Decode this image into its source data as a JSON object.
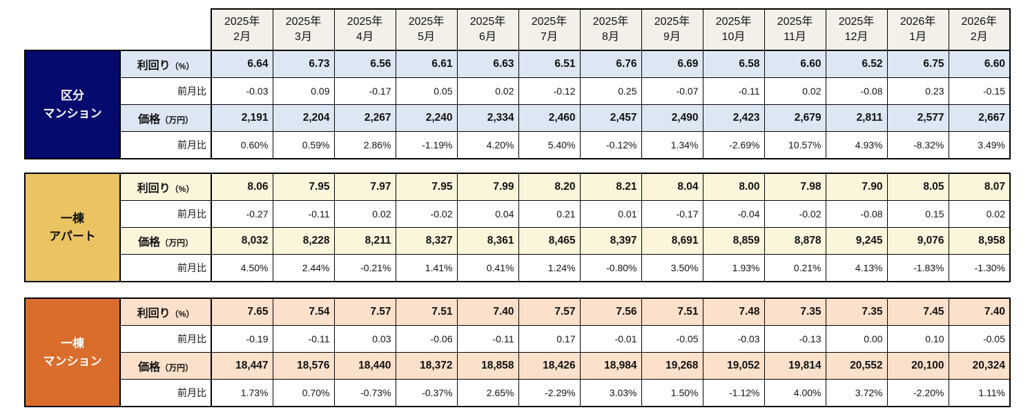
{
  "months": [
    {
      "year": "2025年",
      "month": "2月"
    },
    {
      "year": "2025年",
      "month": "3月"
    },
    {
      "year": "2025年",
      "month": "4月"
    },
    {
      "year": "2025年",
      "month": "5月"
    },
    {
      "year": "2025年",
      "month": "6月"
    },
    {
      "year": "2025年",
      "month": "7月"
    },
    {
      "year": "2025年",
      "month": "8月"
    },
    {
      "year": "2025年",
      "month": "9月"
    },
    {
      "year": "2025年",
      "month": "10月"
    },
    {
      "year": "2025年",
      "month": "11月"
    },
    {
      "year": "2025年",
      "month": "12月"
    },
    {
      "year": "2026年",
      "month": "1月"
    },
    {
      "year": "2026年",
      "month": "2月"
    }
  ],
  "row_labels": {
    "yield": "利回り",
    "yield_unit": "（%）",
    "price": "価格",
    "price_unit": "（万円）",
    "mom": "前月比"
  },
  "colors": {
    "header_bg": "#f3f0ea",
    "border": "#000000",
    "kubun_label_bg": "#050a6e",
    "kubun_row_bg": "#dce7f3",
    "apart_label_bg": "#eac463",
    "apart_row_bg": "#fbf5dc",
    "mansion_label_bg": "#db6d2c",
    "mansion_row_bg": "#fbe0cb"
  },
  "sections": [
    {
      "label_line1": "区分",
      "label_line2": "マンション",
      "label_bg": "#050a6e",
      "label_color": "#ffffff",
      "row_bg": "#dce7f3"
    },
    {
      "label_line1": "一棟",
      "label_line2": "アパート",
      "label_bg": "#eac463",
      "label_color": "#111111",
      "row_bg": "#fbf5dc"
    },
    {
      "label_line1": "一棟",
      "label_line2": "マンション",
      "label_bg": "#db6d2c",
      "label_color": "#ffffff",
      "row_bg": "#fbe0cb"
    }
  ],
  "chart_data": [
    {
      "type": "table",
      "title": "区分マンション",
      "categories": [
        "2025年2月",
        "2025年3月",
        "2025年4月",
        "2025年5月",
        "2025年6月",
        "2025年7月",
        "2025年8月",
        "2025年9月",
        "2025年10月",
        "2025年11月",
        "2025年12月",
        "2026年1月",
        "2026年2月"
      ],
      "series": [
        {
          "name": "利回り（%）",
          "values": [
            "6.64",
            "6.73",
            "6.56",
            "6.61",
            "6.63",
            "6.51",
            "6.76",
            "6.69",
            "6.58",
            "6.60",
            "6.52",
            "6.75",
            "6.60"
          ]
        },
        {
          "name": "前月比",
          "values": [
            "-0.03",
            "0.09",
            "-0.17",
            "0.05",
            "0.02",
            "-0.12",
            "0.25",
            "-0.07",
            "-0.11",
            "0.02",
            "-0.08",
            "0.23",
            "-0.15"
          ]
        },
        {
          "name": "価格（万円）",
          "values": [
            "2,191",
            "2,204",
            "2,267",
            "2,240",
            "2,334",
            "2,460",
            "2,457",
            "2,490",
            "2,423",
            "2,679",
            "2,811",
            "2,577",
            "2,667"
          ]
        },
        {
          "name": "前月比",
          "values": [
            "0.60%",
            "0.59%",
            "2.86%",
            "-1.19%",
            "4.20%",
            "5.40%",
            "-0.12%",
            "1.34%",
            "-2.69%",
            "10.57%",
            "4.93%",
            "-8.32%",
            "3.49%"
          ]
        }
      ]
    },
    {
      "type": "table",
      "title": "一棟アパート",
      "categories": [
        "2025年2月",
        "2025年3月",
        "2025年4月",
        "2025年5月",
        "2025年6月",
        "2025年7月",
        "2025年8月",
        "2025年9月",
        "2025年10月",
        "2025年11月",
        "2025年12月",
        "2026年1月",
        "2026年2月"
      ],
      "series": [
        {
          "name": "利回り（%）",
          "values": [
            "8.06",
            "7.95",
            "7.97",
            "7.95",
            "7.99",
            "8.20",
            "8.21",
            "8.04",
            "8.00",
            "7.98",
            "7.90",
            "8.05",
            "8.07"
          ]
        },
        {
          "name": "前月比",
          "values": [
            "-0.27",
            "-0.11",
            "0.02",
            "-0.02",
            "0.04",
            "0.21",
            "0.01",
            "-0.17",
            "-0.04",
            "-0.02",
            "-0.08",
            "0.15",
            "0.02"
          ]
        },
        {
          "name": "価格（万円）",
          "values": [
            "8,032",
            "8,228",
            "8,211",
            "8,327",
            "8,361",
            "8,465",
            "8,397",
            "8,691",
            "8,859",
            "8,878",
            "9,245",
            "9,076",
            "8,958"
          ]
        },
        {
          "name": "前月比",
          "values": [
            "4.50%",
            "2.44%",
            "-0.21%",
            "1.41%",
            "0.41%",
            "1.24%",
            "-0.80%",
            "3.50%",
            "1.93%",
            "0.21%",
            "4.13%",
            "-1.83%",
            "-1.30%"
          ]
        }
      ]
    },
    {
      "type": "table",
      "title": "一棟マンション",
      "categories": [
        "2025年2月",
        "2025年3月",
        "2025年4月",
        "2025年5月",
        "2025年6月",
        "2025年7月",
        "2025年8月",
        "2025年9月",
        "2025年10月",
        "2025年11月",
        "2025年12月",
        "2026年1月",
        "2026年2月"
      ],
      "series": [
        {
          "name": "利回り（%）",
          "values": [
            "7.65",
            "7.54",
            "7.57",
            "7.51",
            "7.40",
            "7.57",
            "7.56",
            "7.51",
            "7.48",
            "7.35",
            "7.35",
            "7.45",
            "7.40"
          ]
        },
        {
          "name": "前月比",
          "values": [
            "-0.19",
            "-0.11",
            "0.03",
            "-0.06",
            "-0.11",
            "0.17",
            "-0.01",
            "-0.05",
            "-0.03",
            "-0.13",
            "0.00",
            "0.10",
            "-0.05"
          ]
        },
        {
          "name": "価格（万円）",
          "values": [
            "18,447",
            "18,576",
            "18,440",
            "18,372",
            "18,858",
            "18,426",
            "18,984",
            "19,268",
            "19,052",
            "19,814",
            "20,552",
            "20,100",
            "20,324"
          ]
        },
        {
          "name": "前月比",
          "values": [
            "1.73%",
            "0.70%",
            "-0.73%",
            "-0.37%",
            "2.65%",
            "-2.29%",
            "3.03%",
            "1.50%",
            "-1.12%",
            "4.00%",
            "3.72%",
            "-2.20%",
            "1.11%"
          ]
        }
      ]
    }
  ]
}
